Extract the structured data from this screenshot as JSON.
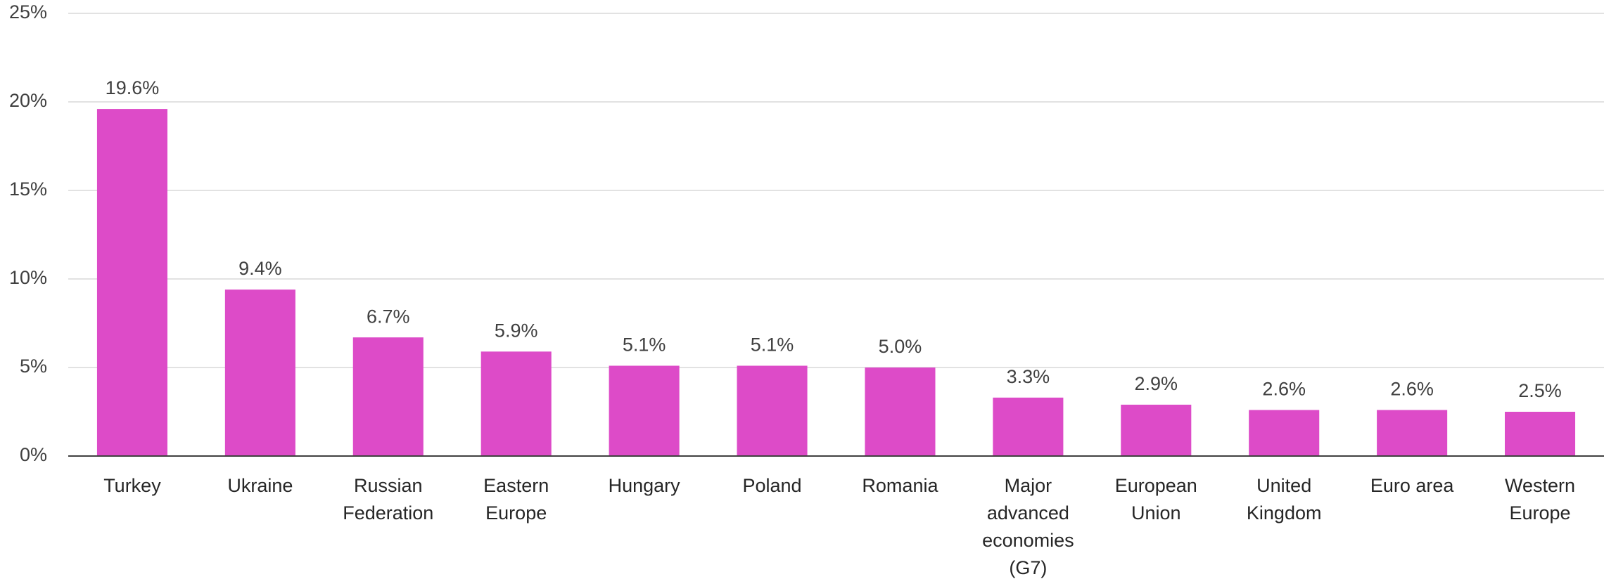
{
  "chart_data": {
    "type": "bar",
    "categories": [
      "Turkey",
      "Ukraine",
      "Russian Federation",
      "Eastern Europe",
      "Hungary",
      "Poland",
      "Romania",
      "Major advanced economies (G7)",
      "European Union",
      "United Kingdom",
      "Euro area",
      "Western Europe"
    ],
    "values": [
      19.6,
      9.4,
      6.7,
      5.9,
      5.1,
      5.1,
      5.0,
      3.3,
      2.9,
      2.6,
      2.6,
      2.5
    ],
    "value_labels": [
      "19.6%",
      "9.4%",
      "6.7%",
      "5.9%",
      "5.1%",
      "5.1%",
      "5.0%",
      "3.3%",
      "2.9%",
      "2.6%",
      "2.6%",
      "2.5%"
    ],
    "color": "#dd4bc8",
    "ylim": [
      0,
      25
    ],
    "yticks": [
      {
        "value": 0,
        "label": "0%"
      },
      {
        "value": 5,
        "label": "5%"
      },
      {
        "value": 10,
        "label": "10%"
      },
      {
        "value": 15,
        "label": "15%"
      },
      {
        "value": 20,
        "label": "20%"
      },
      {
        "value": 25,
        "label": "25%"
      }
    ],
    "grid": true
  }
}
